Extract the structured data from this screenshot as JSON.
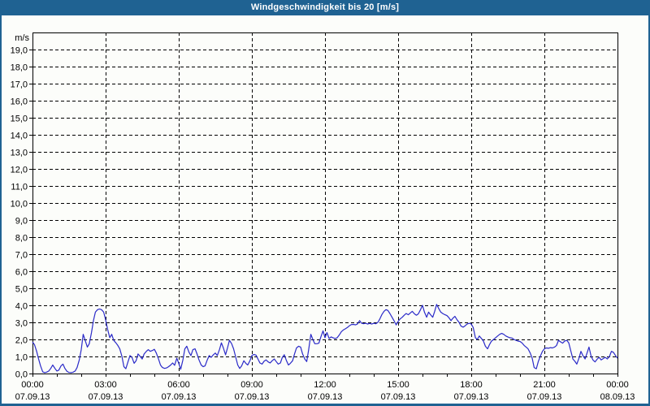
{
  "title": "Windgeschwindigkeit bis 20 [m/s]",
  "colors": {
    "title_bar": "#1f6292",
    "frame": "#1f6292",
    "background": "#fcfdfa",
    "line": "#2a2ac8",
    "grid": "#000000",
    "axis": "#000000",
    "text": "#000000"
  },
  "chart_data": {
    "type": "line",
    "title": "Windgeschwindigkeit bis 20 [m/s]",
    "unit_label": "m/s",
    "ylim": [
      0,
      20
    ],
    "y_tick_labels": [
      "0,0",
      "1,0",
      "2,0",
      "3,0",
      "4,0",
      "5,0",
      "6,0",
      "7,0",
      "8,0",
      "9,0",
      "10,0",
      "11,0",
      "12,0",
      "13,0",
      "14,0",
      "15,0",
      "16,0",
      "17,0",
      "18,0",
      "19,0"
    ],
    "x_axis": {
      "hours_span": 24,
      "minor_tick_every_hours": 1,
      "gridline_every_hours": 3,
      "ticks": [
        {
          "hour": 0,
          "time": "00:00",
          "date": "07.09.13"
        },
        {
          "hour": 3,
          "time": "03:00",
          "date": "07.09.13"
        },
        {
          "hour": 6,
          "time": "06:00",
          "date": "07.09.13"
        },
        {
          "hour": 9,
          "time": "09:00",
          "date": "07.09.13"
        },
        {
          "hour": 12,
          "time": "12:00",
          "date": "07.09.13"
        },
        {
          "hour": 15,
          "time": "15:00",
          "date": "07.09.13"
        },
        {
          "hour": 18,
          "time": "18:00",
          "date": "07.09.13"
        },
        {
          "hour": 21,
          "time": "21:00",
          "date": "07.09.13"
        },
        {
          "hour": 24,
          "time": "00:00",
          "date": "08.09.13"
        }
      ]
    },
    "grid": {
      "horizontal_dashed": true,
      "vertical_dashed": true,
      "legend": "none"
    },
    "series": [
      {
        "name": "Windgeschwindigkeit",
        "points": [
          [
            0,
            1.85
          ],
          [
            0.08,
            1.7
          ],
          [
            0.17,
            1.3
          ],
          [
            0.25,
            0.85
          ],
          [
            0.33,
            0.45
          ],
          [
            0.42,
            0.1
          ],
          [
            0.5,
            0.05
          ],
          [
            0.58,
            0.08
          ],
          [
            0.67,
            0.15
          ],
          [
            0.75,
            0.3
          ],
          [
            0.83,
            0.5
          ],
          [
            0.92,
            0.3
          ],
          [
            1.0,
            0.15
          ],
          [
            1.08,
            0.2
          ],
          [
            1.17,
            0.45
          ],
          [
            1.25,
            0.55
          ],
          [
            1.33,
            0.3
          ],
          [
            1.42,
            0.12
          ],
          [
            1.5,
            0.06
          ],
          [
            1.58,
            0.05
          ],
          [
            1.67,
            0.08
          ],
          [
            1.75,
            0.15
          ],
          [
            1.83,
            0.35
          ],
          [
            1.92,
            0.8
          ],
          [
            2.0,
            1.4
          ],
          [
            2.08,
            2.3
          ],
          [
            2.17,
            1.9
          ],
          [
            2.25,
            1.55
          ],
          [
            2.33,
            1.75
          ],
          [
            2.42,
            2.4
          ],
          [
            2.5,
            3.1
          ],
          [
            2.58,
            3.6
          ],
          [
            2.67,
            3.75
          ],
          [
            2.75,
            3.78
          ],
          [
            2.83,
            3.75
          ],
          [
            2.92,
            3.6
          ],
          [
            3.0,
            3.15
          ],
          [
            3.08,
            2.6
          ],
          [
            3.17,
            2.1
          ],
          [
            3.25,
            2.3
          ],
          [
            3.33,
            1.95
          ],
          [
            3.42,
            1.8
          ],
          [
            3.5,
            1.65
          ],
          [
            3.58,
            1.45
          ],
          [
            3.67,
            1.0
          ],
          [
            3.75,
            0.4
          ],
          [
            3.83,
            0.28
          ],
          [
            3.92,
            0.7
          ],
          [
            4.0,
            1.05
          ],
          [
            4.08,
            0.95
          ],
          [
            4.17,
            0.6
          ],
          [
            4.25,
            0.75
          ],
          [
            4.33,
            1.15
          ],
          [
            4.42,
            1.0
          ],
          [
            4.5,
            0.85
          ],
          [
            4.58,
            1.15
          ],
          [
            4.67,
            1.3
          ],
          [
            4.75,
            1.4
          ],
          [
            4.83,
            1.3
          ],
          [
            4.92,
            1.35
          ],
          [
            5.0,
            1.42
          ],
          [
            5.08,
            1.2
          ],
          [
            5.17,
            0.85
          ],
          [
            5.25,
            0.5
          ],
          [
            5.33,
            0.35
          ],
          [
            5.42,
            0.3
          ],
          [
            5.5,
            0.33
          ],
          [
            5.58,
            0.4
          ],
          [
            5.67,
            0.5
          ],
          [
            5.75,
            0.62
          ],
          [
            5.83,
            0.48
          ],
          [
            5.92,
            0.9
          ],
          [
            6.0,
            0.6
          ],
          [
            6.08,
            0.25
          ],
          [
            6.17,
            0.8
          ],
          [
            6.25,
            1.45
          ],
          [
            6.33,
            1.6
          ],
          [
            6.42,
            1.25
          ],
          [
            6.5,
            1.05
          ],
          [
            6.58,
            1.4
          ],
          [
            6.67,
            1.45
          ],
          [
            6.75,
            1.15
          ],
          [
            6.83,
            0.8
          ],
          [
            6.92,
            0.5
          ],
          [
            7.0,
            0.4
          ],
          [
            7.08,
            0.45
          ],
          [
            7.17,
            0.8
          ],
          [
            7.25,
            1.05
          ],
          [
            7.33,
            0.95
          ],
          [
            7.42,
            1.1
          ],
          [
            7.5,
            1.2
          ],
          [
            7.58,
            1.05
          ],
          [
            7.67,
            1.4
          ],
          [
            7.75,
            1.8
          ],
          [
            7.83,
            1.5
          ],
          [
            7.92,
            1.1
          ],
          [
            8.0,
            1.5
          ],
          [
            8.08,
            1.95
          ],
          [
            8.17,
            1.75
          ],
          [
            8.25,
            1.45
          ],
          [
            8.33,
            1.0
          ],
          [
            8.42,
            0.5
          ],
          [
            8.5,
            0.3
          ],
          [
            8.58,
            0.45
          ],
          [
            8.67,
            0.75
          ],
          [
            8.75,
            0.6
          ],
          [
            8.83,
            0.5
          ],
          [
            8.92,
            0.75
          ],
          [
            9.0,
            1.05
          ],
          [
            9.08,
            1.12
          ],
          [
            9.17,
            1.08
          ],
          [
            9.25,
            0.85
          ],
          [
            9.33,
            0.62
          ],
          [
            9.42,
            0.55
          ],
          [
            9.5,
            0.72
          ],
          [
            9.58,
            0.8
          ],
          [
            9.67,
            0.68
          ],
          [
            9.75,
            0.62
          ],
          [
            9.83,
            0.75
          ],
          [
            9.92,
            0.85
          ],
          [
            10.0,
            0.7
          ],
          [
            10.08,
            0.55
          ],
          [
            10.17,
            0.62
          ],
          [
            10.25,
            0.95
          ],
          [
            10.33,
            1.1
          ],
          [
            10.42,
            0.75
          ],
          [
            10.5,
            0.5
          ],
          [
            10.58,
            0.6
          ],
          [
            10.67,
            0.75
          ],
          [
            10.75,
            1.15
          ],
          [
            10.83,
            1.5
          ],
          [
            10.92,
            1.6
          ],
          [
            11.0,
            1.55
          ],
          [
            11.08,
            1.15
          ],
          [
            11.17,
            0.85
          ],
          [
            11.25,
            0.7
          ],
          [
            11.33,
            1.4
          ],
          [
            11.42,
            2.3
          ],
          [
            11.5,
            2.0
          ],
          [
            11.58,
            1.75
          ],
          [
            11.67,
            1.75
          ],
          [
            11.75,
            1.78
          ],
          [
            11.83,
            2.15
          ],
          [
            11.92,
            2.5
          ],
          [
            12.0,
            2.1
          ],
          [
            12.08,
            2.4
          ],
          [
            12.17,
            2.05
          ],
          [
            12.25,
            2.15
          ],
          [
            12.33,
            2.1
          ],
          [
            12.42,
            2.05
          ],
          [
            12.5,
            2.1
          ],
          [
            12.58,
            2.25
          ],
          [
            12.67,
            2.45
          ],
          [
            12.75,
            2.55
          ],
          [
            12.83,
            2.62
          ],
          [
            12.92,
            2.7
          ],
          [
            13.0,
            2.8
          ],
          [
            13.08,
            2.87
          ],
          [
            13.17,
            2.88
          ],
          [
            13.25,
            2.85
          ],
          [
            13.33,
            2.9
          ],
          [
            13.42,
            3.1
          ],
          [
            13.5,
            2.95
          ],
          [
            13.58,
            2.92
          ],
          [
            13.67,
            2.95
          ],
          [
            13.75,
            2.9
          ],
          [
            13.83,
            2.94
          ],
          [
            13.92,
            2.9
          ],
          [
            14.0,
            2.95
          ],
          [
            14.08,
            2.92
          ],
          [
            14.17,
            3.0
          ],
          [
            14.25,
            3.2
          ],
          [
            14.33,
            3.45
          ],
          [
            14.42,
            3.65
          ],
          [
            14.5,
            3.75
          ],
          [
            14.58,
            3.7
          ],
          [
            14.67,
            3.5
          ],
          [
            14.75,
            3.3
          ],
          [
            14.83,
            3.1
          ],
          [
            14.92,
            2.85
          ],
          [
            15.0,
            3.05
          ],
          [
            15.08,
            3.2
          ],
          [
            15.17,
            3.3
          ],
          [
            15.25,
            3.42
          ],
          [
            15.33,
            3.52
          ],
          [
            15.42,
            3.45
          ],
          [
            15.5,
            3.55
          ],
          [
            15.58,
            3.65
          ],
          [
            15.67,
            3.5
          ],
          [
            15.75,
            3.42
          ],
          [
            15.83,
            3.5
          ],
          [
            15.92,
            3.75
          ],
          [
            16.0,
            4.0
          ],
          [
            16.08,
            3.6
          ],
          [
            16.17,
            3.3
          ],
          [
            16.25,
            3.6
          ],
          [
            16.33,
            3.45
          ],
          [
            16.42,
            3.3
          ],
          [
            16.5,
            3.65
          ],
          [
            16.58,
            4.05
          ],
          [
            16.67,
            3.8
          ],
          [
            16.75,
            3.6
          ],
          [
            16.83,
            3.52
          ],
          [
            16.92,
            3.45
          ],
          [
            17.0,
            3.4
          ],
          [
            17.08,
            3.28
          ],
          [
            17.17,
            3.1
          ],
          [
            17.25,
            3.25
          ],
          [
            17.33,
            3.35
          ],
          [
            17.42,
            3.15
          ],
          [
            17.5,
            3.0
          ],
          [
            17.58,
            2.78
          ],
          [
            17.67,
            2.72
          ],
          [
            17.75,
            2.8
          ],
          [
            17.83,
            2.9
          ],
          [
            17.92,
            2.95
          ],
          [
            18.0,
            2.9
          ],
          [
            18.08,
            2.7
          ],
          [
            18.17,
            2.1
          ],
          [
            18.25,
            2.0
          ],
          [
            18.33,
            2.2
          ],
          [
            18.42,
            2.05
          ],
          [
            18.5,
            1.9
          ],
          [
            18.58,
            1.6
          ],
          [
            18.67,
            1.45
          ],
          [
            18.75,
            1.7
          ],
          [
            18.83,
            1.9
          ],
          [
            18.92,
            2.0
          ],
          [
            19.0,
            2.1
          ],
          [
            19.08,
            2.2
          ],
          [
            19.17,
            2.3
          ],
          [
            19.25,
            2.35
          ],
          [
            19.33,
            2.3
          ],
          [
            19.42,
            2.2
          ],
          [
            19.5,
            2.15
          ],
          [
            19.58,
            2.1
          ],
          [
            19.67,
            2.08
          ],
          [
            19.75,
            2.0
          ],
          [
            19.83,
            1.95
          ],
          [
            19.92,
            1.9
          ],
          [
            20.0,
            1.88
          ],
          [
            20.08,
            1.8
          ],
          [
            20.17,
            1.65
          ],
          [
            20.25,
            1.55
          ],
          [
            20.33,
            1.45
          ],
          [
            20.42,
            1.2
          ],
          [
            20.5,
            0.9
          ],
          [
            20.58,
            0.35
          ],
          [
            20.67,
            0.28
          ],
          [
            20.75,
            0.7
          ],
          [
            20.83,
            1.0
          ],
          [
            20.92,
            1.3
          ],
          [
            21.0,
            1.45
          ],
          [
            21.08,
            1.5
          ],
          [
            21.17,
            1.48
          ],
          [
            21.25,
            1.52
          ],
          [
            21.33,
            1.5
          ],
          [
            21.42,
            1.55
          ],
          [
            21.5,
            1.65
          ],
          [
            21.58,
            1.95
          ],
          [
            21.67,
            1.85
          ],
          [
            21.75,
            1.78
          ],
          [
            21.83,
            1.9
          ],
          [
            21.92,
            1.95
          ],
          [
            22.0,
            1.8
          ],
          [
            22.08,
            1.35
          ],
          [
            22.17,
            0.85
          ],
          [
            22.25,
            0.72
          ],
          [
            22.33,
            0.55
          ],
          [
            22.42,
            0.9
          ],
          [
            22.5,
            1.3
          ],
          [
            22.58,
            1.05
          ],
          [
            22.67,
            0.85
          ],
          [
            22.75,
            1.2
          ],
          [
            22.83,
            1.55
          ],
          [
            22.92,
            1.0
          ],
          [
            23.0,
            0.78
          ],
          [
            23.08,
            0.68
          ],
          [
            23.17,
            0.85
          ],
          [
            23.25,
            0.95
          ],
          [
            23.33,
            0.8
          ],
          [
            23.42,
            0.88
          ],
          [
            23.5,
            0.95
          ],
          [
            23.58,
            0.85
          ],
          [
            23.67,
            1.0
          ],
          [
            23.75,
            1.3
          ],
          [
            23.83,
            1.25
          ],
          [
            23.92,
            1.05
          ],
          [
            24.0,
            0.9
          ]
        ]
      }
    ]
  }
}
